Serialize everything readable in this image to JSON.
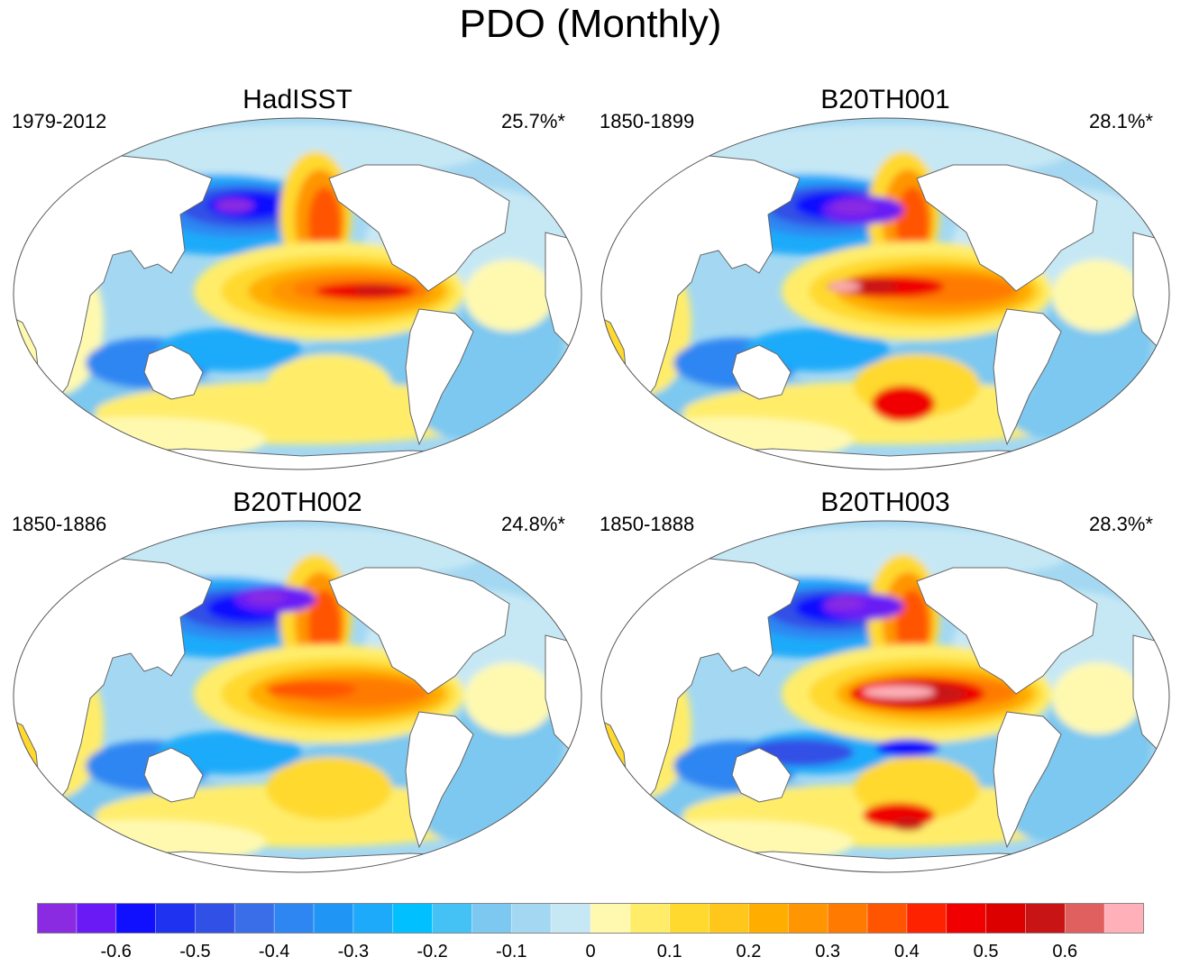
{
  "title": "PDO (Monthly)",
  "panels": [
    {
      "name": "HadISST",
      "period": "1979-2012",
      "variance": "25.7%*",
      "variant": 0
    },
    {
      "name": "B20TH001",
      "period": "1850-1899",
      "variance": "28.1%*",
      "variant": 1
    },
    {
      "name": "B20TH002",
      "period": "1850-1886",
      "variance": "24.8%*",
      "variant": 2
    },
    {
      "name": "B20TH003",
      "period": "1850-1888",
      "variance": "28.3%*",
      "variant": 3
    }
  ],
  "colorbar": {
    "colors": [
      "#8a2be2",
      "#6a1bf5",
      "#1010ff",
      "#1e32f0",
      "#3050e6",
      "#3a6ee8",
      "#2e86f2",
      "#1f96f5",
      "#1eaafa",
      "#00c0ff",
      "#45c2f5",
      "#7cc8f0",
      "#a4d8f2",
      "#c6e8f5",
      "#fff9b0",
      "#ffed6a",
      "#ffd92e",
      "#ffc61c",
      "#ffae00",
      "#ff9500",
      "#ff7a00",
      "#ff5500",
      "#ff2200",
      "#f00000",
      "#dc0000",
      "#c81414",
      "#e06060",
      "#ffb0b8"
    ],
    "tick_values": [
      -0.6,
      -0.5,
      -0.4,
      -0.3,
      -0.2,
      -0.1,
      0,
      0.1,
      0.2,
      0.3,
      0.4,
      0.5,
      0.6
    ],
    "tick_labels": [
      "-0.6",
      "-0.5",
      "-0.4",
      "-0.3",
      "-0.2",
      "-0.1",
      "0",
      "0.1",
      "0.2",
      "0.3",
      "0.4",
      "0.5",
      "0.6"
    ],
    "min": -0.7,
    "max": 0.7
  }
}
